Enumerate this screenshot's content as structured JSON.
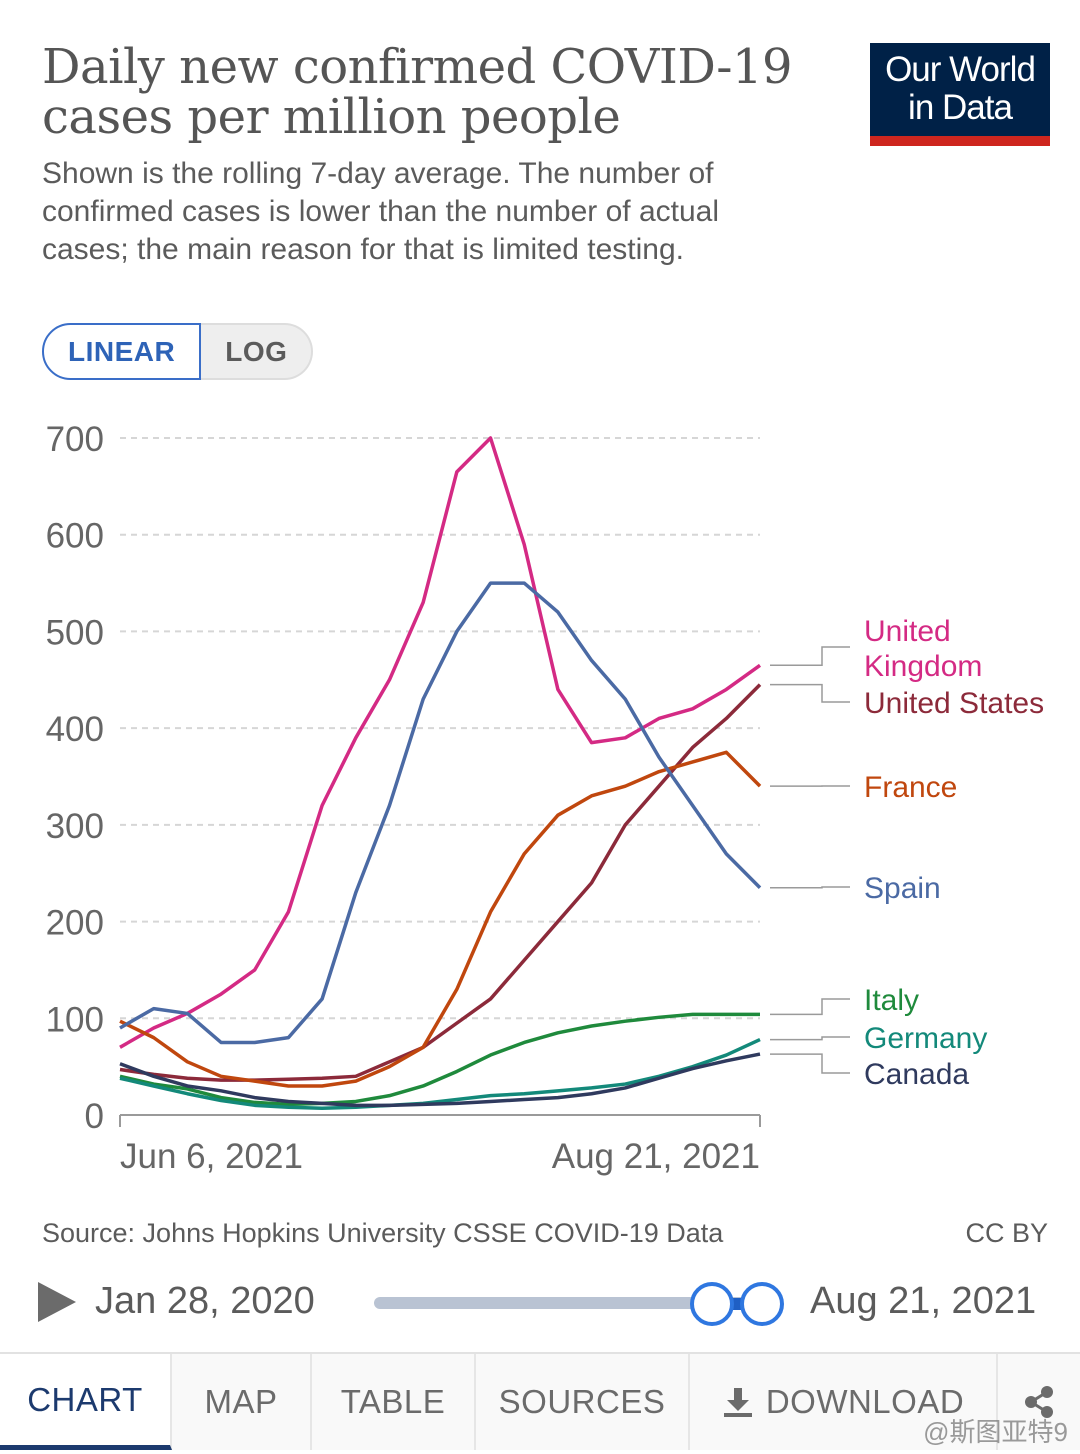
{
  "header": {
    "title": "Daily new confirmed COVID-19 cases per million people",
    "subtitle": "Shown is the rolling 7-day average. The number of confirmed cases is lower than the number of actual cases; the main reason for that is limited testing.",
    "logo_text": "Our World in Data"
  },
  "scale_toggle": {
    "linear": "LINEAR",
    "log": "LOG",
    "selected": "LINEAR"
  },
  "footer": {
    "source": "Source: Johns Hopkins University CSSE COVID-19 Data",
    "license": "CC BY"
  },
  "timeline": {
    "start": "Jan 28, 2020",
    "end": "Aug 21, 2021",
    "play_icon": "play-icon"
  },
  "tabs": [
    {
      "label": "CHART",
      "active": true
    },
    {
      "label": "MAP",
      "active": false
    },
    {
      "label": "TABLE",
      "active": false
    },
    {
      "label": "SOURCES",
      "active": false
    },
    {
      "label": "DOWNLOAD",
      "active": false,
      "icon": "download-icon"
    }
  ],
  "share_icon": "share-icon",
  "watermark": "@斯图亚特9",
  "colors": {
    "united_kingdom": "#d42a84",
    "united_states": "#8c2a3a",
    "france": "#c0470e",
    "spain": "#4b6aa4",
    "italy": "#1f8a3c",
    "germany": "#13897a",
    "canada": "#2f3a5e",
    "accent": "#2e63b7",
    "logo_bg": "#002147",
    "logo_bar": "#ce261e"
  },
  "chart_data": {
    "type": "line",
    "title": "Daily new confirmed COVID-19 cases per million people",
    "ylim": [
      0,
      700
    ],
    "yticks": [
      0,
      100,
      200,
      300,
      400,
      500,
      600,
      700
    ],
    "x_tick_labels": [
      "Jun 6, 2021",
      "Aug 21, 2021"
    ],
    "x_days": [
      0,
      4,
      8,
      12,
      16,
      20,
      24,
      28,
      32,
      36,
      40,
      44,
      48,
      52,
      56,
      60,
      64,
      68,
      72,
      76
    ],
    "grid": "horizontal dashed",
    "legend": "right, labels at line ends",
    "series": [
      {
        "name": "United Kingdom",
        "values": [
          70,
          90,
          105,
          125,
          150,
          210,
          320,
          390,
          450,
          530,
          665,
          700,
          590,
          440,
          385,
          390,
          410,
          420,
          440,
          465
        ]
      },
      {
        "name": "United States",
        "values": [
          47,
          42,
          38,
          36,
          36,
          37,
          38,
          40,
          55,
          70,
          95,
          120,
          160,
          200,
          240,
          300,
          340,
          380,
          410,
          445
        ]
      },
      {
        "name": "France",
        "values": [
          97,
          80,
          55,
          40,
          35,
          30,
          30,
          35,
          50,
          70,
          130,
          210,
          270,
          310,
          330,
          340,
          355,
          365,
          375,
          340
        ]
      },
      {
        "name": "Spain",
        "values": [
          90,
          110,
          105,
          75,
          75,
          80,
          120,
          230,
          320,
          430,
          500,
          550,
          550,
          520,
          470,
          430,
          370,
          320,
          270,
          235
        ]
      },
      {
        "name": "Italy",
        "values": [
          40,
          32,
          27,
          18,
          13,
          11,
          12,
          14,
          20,
          30,
          45,
          62,
          75,
          85,
          92,
          97,
          101,
          104,
          104,
          104
        ]
      },
      {
        "name": "Germany",
        "values": [
          38,
          30,
          22,
          15,
          10,
          8,
          7,
          8,
          10,
          12,
          16,
          20,
          22,
          25,
          28,
          32,
          40,
          50,
          62,
          78
        ]
      },
      {
        "name": "Canada",
        "values": [
          53,
          40,
          30,
          25,
          18,
          14,
          12,
          10,
          10,
          11,
          12,
          14,
          16,
          18,
          22,
          28,
          38,
          48,
          56,
          63
        ]
      }
    ]
  }
}
